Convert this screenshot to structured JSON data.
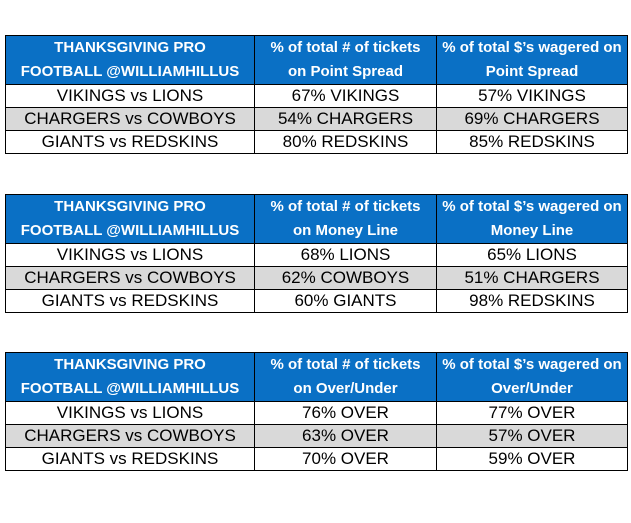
{
  "tables": [
    {
      "header": {
        "col1": [
          "THANKSGIVING PRO",
          "FOOTBALL @WILLIAMHILLUS"
        ],
        "col2": [
          "% of total # of tickets",
          "on Point Spread"
        ],
        "col3": [
          "% of total $’s wagered on",
          "Point Spread"
        ]
      },
      "rows": [
        {
          "game": "VIKINGS vs LIONS",
          "tickets": "67% VIKINGS",
          "dollars": "57% VIKINGS"
        },
        {
          "game": "CHARGERS vs COWBOYS",
          "tickets": "54% CHARGERS",
          "dollars": "69% CHARGERS"
        },
        {
          "game": "GIANTS vs REDSKINS",
          "tickets": "80% REDSKINS",
          "dollars": "85% REDSKINS"
        }
      ]
    },
    {
      "header": {
        "col1": [
          "THANKSGIVING PRO",
          "FOOTBALL @WILLIAMHILLUS"
        ],
        "col2": [
          "% of total # of tickets",
          "on Money Line"
        ],
        "col3": [
          "% of total $’s wagered on",
          "Money Line"
        ]
      },
      "rows": [
        {
          "game": "VIKINGS vs LIONS",
          "tickets": "68% LIONS",
          "dollars": "65% LIONS"
        },
        {
          "game": "CHARGERS vs COWBOYS",
          "tickets": "62% COWBOYS",
          "dollars": "51% CHARGERS"
        },
        {
          "game": "GIANTS vs REDSKINS",
          "tickets": "60% GIANTS",
          "dollars": "98% REDSKINS"
        }
      ]
    },
    {
      "header": {
        "col1": [
          "THANKSGIVING PRO",
          "FOOTBALL @WILLIAMHILLUS"
        ],
        "col2": [
          "% of total # of tickets",
          "on Over/Under"
        ],
        "col3": [
          "% of total $’s wagered on",
          "Over/Under"
        ]
      },
      "rows": [
        {
          "game": "VIKINGS vs LIONS",
          "tickets": "76% OVER",
          "dollars": "77% OVER"
        },
        {
          "game": "CHARGERS vs COWBOYS",
          "tickets": "63% OVER",
          "dollars": "57% OVER"
        },
        {
          "game": "GIANTS vs REDSKINS",
          "tickets": "70% OVER",
          "dollars": "59% OVER"
        }
      ]
    }
  ],
  "colors": {
    "header_bg": "#0a70c5",
    "header_text": "#ffffff",
    "shaded_row": "#d9d9d9",
    "border": "#000000"
  }
}
